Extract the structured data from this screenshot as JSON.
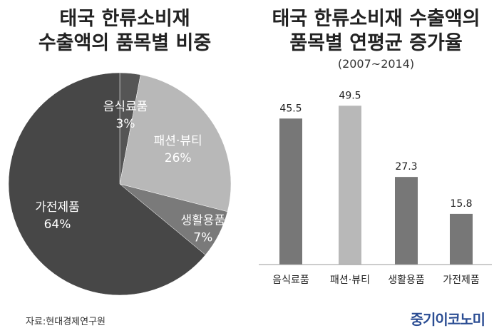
{
  "left_title": {
    "line1": "태국 한류소비재",
    "line2": "수출액의 품목별 비중"
  },
  "right_title": {
    "line1": "태국 한류소비재 수출액의",
    "line2": "품목별 연평균 증가율",
    "period": "(2007~2014)"
  },
  "source": "자료:현대경제연구원",
  "logo": "중기이코노미",
  "chart_data": [
    {
      "type": "pie",
      "title": "태국 한류소비재 수출액의 품목별 비중",
      "start": "12 o'clock, clockwise",
      "slices": [
        {
          "label": "음식료품",
          "value": 3,
          "display": "3%",
          "color": "#555555"
        },
        {
          "label": "패션·뷰티",
          "value": 26,
          "display": "26%",
          "color": "#b8b8b8"
        },
        {
          "label": "생활용품",
          "value": 7,
          "display": "7%",
          "color": "#7a7a7a"
        },
        {
          "label": "가전제품",
          "value": 64,
          "display": "64%",
          "color": "#474747"
        }
      ]
    },
    {
      "type": "bar",
      "title": "태국 한류소비재 수출액의 품목별 연평균 증가율 (2007~2014)",
      "categories": [
        "음식료품",
        "패션·뷰티",
        "생활용품",
        "가전제품"
      ],
      "values": [
        45.5,
        49.5,
        27.3,
        15.8
      ],
      "value_labels": [
        "45.5",
        "49.5",
        "27.3",
        "15.8"
      ],
      "colors": [
        "#777777",
        "#b8b8b8",
        "#777777",
        "#777777"
      ],
      "ylim": [
        0,
        58
      ],
      "grid": false,
      "axis_color": "#999999"
    }
  ]
}
